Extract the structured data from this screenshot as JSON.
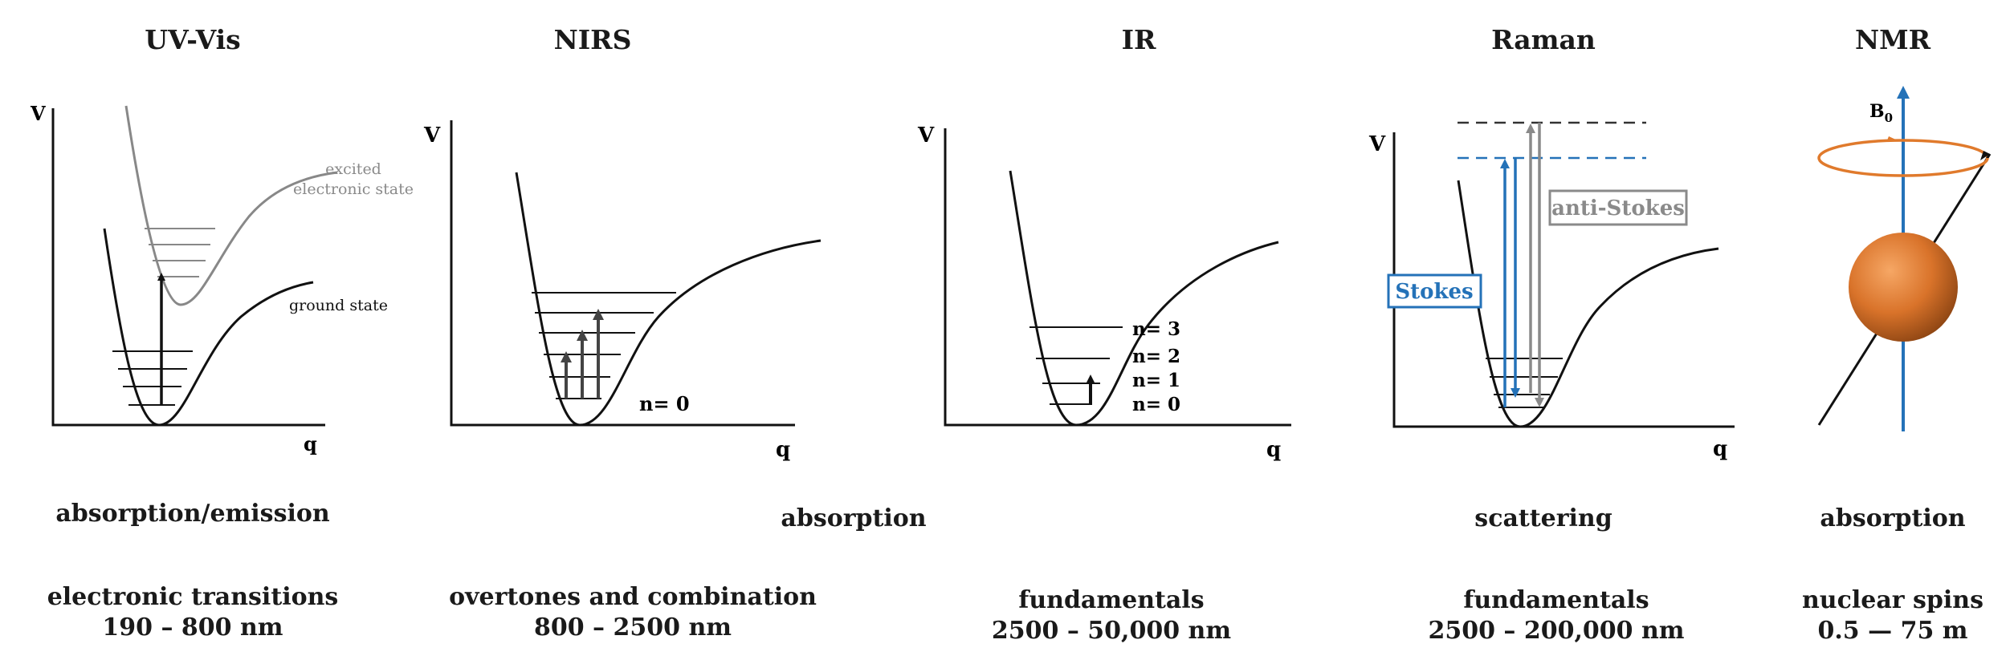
{
  "panels": [
    {
      "title": "UV-Vis",
      "axis_y": "V",
      "axis_x": "q",
      "labels": {
        "excited": [
          "excited",
          "electronic state"
        ],
        "ground": "ground state"
      },
      "interaction": "absorption/emission",
      "transition": "electronic transitions",
      "range": "190 – 800 nm"
    },
    {
      "title": "NIRS",
      "axis_y": "V",
      "axis_x": "q",
      "level_label": "n= 0",
      "transition": "overtones and combination",
      "range": "800 – 2500 nm"
    },
    {
      "title": "IR",
      "axis_y": "V",
      "axis_x": "q",
      "level_labels": [
        "n= 3",
        "n= 2",
        "n= 1",
        "n= 0"
      ],
      "transition": "fundamentals",
      "range": "2500 – 50,000 nm"
    },
    {
      "title": "Raman",
      "axis_y": "V",
      "axis_x": "q",
      "stokes": "Stokes",
      "anti_stokes": "anti-Stokes",
      "interaction": "scattering",
      "transition": "fundamentals",
      "range": "2500 – 200,000 nm"
    },
    {
      "title": "NMR",
      "field_label": "B",
      "field_sub": "0",
      "interaction": "absorption",
      "transition": "nuclear spins",
      "range": "0.5 — 75 m"
    }
  ],
  "shared_interaction": "absorption",
  "colors": {
    "line": "#111111",
    "grey": "#8a8a8a",
    "blue": "#2472b8",
    "orange": "#e07a2c",
    "arrow": "#333333"
  }
}
